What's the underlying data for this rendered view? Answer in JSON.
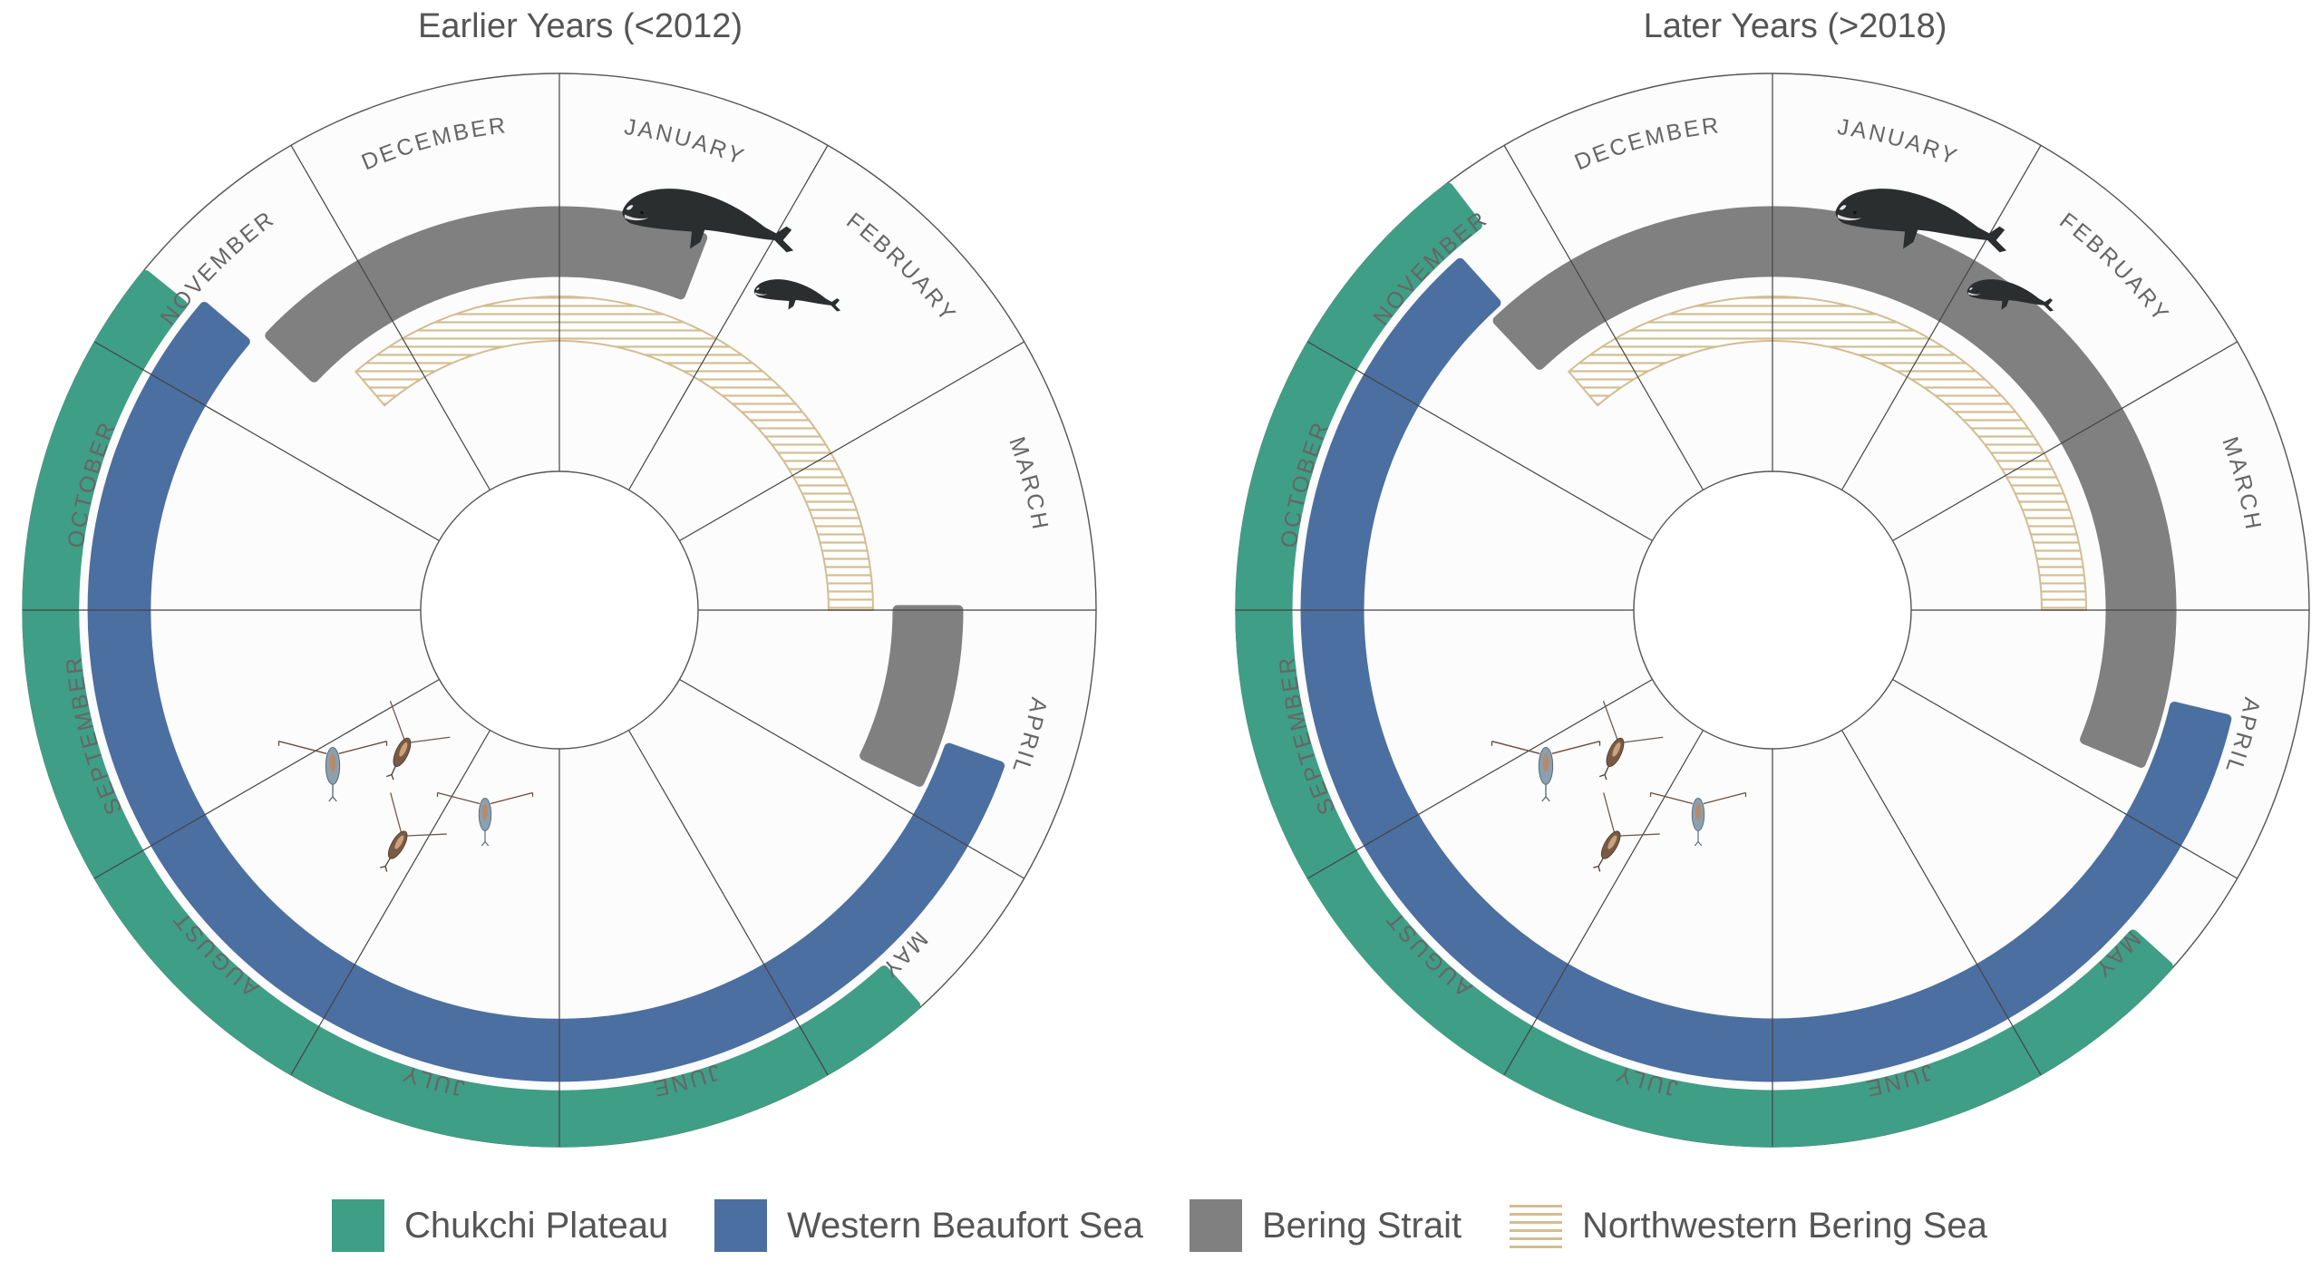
{
  "chart_data": [
    {
      "type": "radial-phenology",
      "title": "Earlier Years (<2012)",
      "months": [
        "JANUARY",
        "FEBRUARY",
        "MARCH",
        "APRIL",
        "MAY",
        "JUNE",
        "JULY",
        "AUGUST",
        "SEPTEMBER",
        "OCTOBER",
        "NOVEMBER",
        "DECEMBER"
      ],
      "series": [
        {
          "name": "Chukchi Plateau",
          "ring": 1,
          "start_month": 4.6,
          "end_month": 10.3
        },
        {
          "name": "Western Beaufort Sea",
          "ring": 2,
          "start_month": 3.65,
          "end_month": 10.35
        },
        {
          "name": "Bering Strait",
          "ring": 3,
          "start_month": 3.0,
          "end_month": 3.85
        },
        {
          "name": "Bering Strait",
          "ring": 3,
          "start_month": 10.45,
          "end_month": 0.7
        },
        {
          "name": "Northwestern Bering Sea",
          "ring": 4,
          "start_month": 10.65,
          "end_month": 3.0
        }
      ]
    },
    {
      "type": "radial-phenology",
      "title": "Later Years (>2018)",
      "months": [
        "JANUARY",
        "FEBRUARY",
        "MARCH",
        "APRIL",
        "MAY",
        "JUNE",
        "JULY",
        "AUGUST",
        "SEPTEMBER",
        "OCTOBER",
        "NOVEMBER",
        "DECEMBER"
      ],
      "series": [
        {
          "name": "Chukchi Plateau",
          "ring": 1,
          "start_month": 4.4,
          "end_month": 10.75
        },
        {
          "name": "Western Beaufort Sea",
          "ring": 2,
          "start_month": 3.45,
          "end_month": 10.6
        },
        {
          "name": "Bering Strait",
          "ring": 3,
          "start_month": 10.55,
          "end_month": 3.75
        },
        {
          "name": "Northwestern Bering Sea",
          "ring": 4,
          "start_month": 10.65,
          "end_month": 3.0
        }
      ]
    }
  ],
  "legend": [
    {
      "label": "Chukchi Plateau",
      "color": "#3f9e86",
      "pattern": "solid"
    },
    {
      "label": "Western Beaufort Sea",
      "color": "#4b6fa0",
      "pattern": "solid"
    },
    {
      "label": "Bering Strait",
      "color": "#808080",
      "pattern": "solid"
    },
    {
      "label": "Northwestern Bering Sea",
      "color": "#d8c5a0",
      "pattern": "hatched"
    }
  ],
  "illustrations": [
    "bowhead-whale-icon",
    "copepod-icon"
  ]
}
